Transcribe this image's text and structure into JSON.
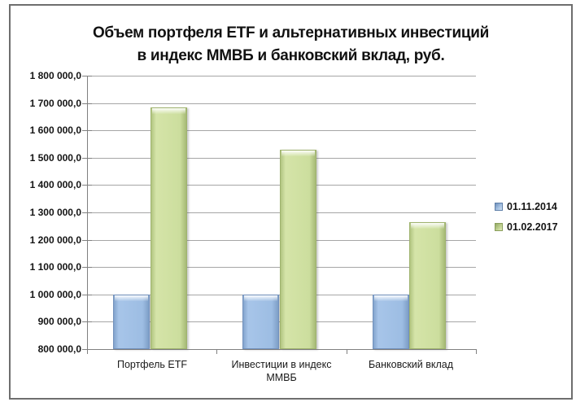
{
  "window": {
    "background": "#ffffff",
    "border_color": "#6e6e6e"
  },
  "chart_data": {
    "type": "bar",
    "title_lines": [
      "Объем портфеля ETF и альтернативных инвестиций",
      "в индекс ММВБ и банковский вклад, руб."
    ],
    "categories": [
      "Портфель ETF",
      "Инвестиции в индекс ММВБ",
      "Банковский вклад"
    ],
    "series": [
      {
        "name": "01.11.2014",
        "color": "#9bbbe0",
        "values": [
          1000000,
          1000000,
          1000000
        ]
      },
      {
        "name": "01.02.2017",
        "color": "#cdde9e",
        "values": [
          1683000,
          1530000,
          1265000
        ]
      }
    ],
    "ylim": [
      800000,
      1800000
    ],
    "ytick_step": 100000,
    "ytick_labels": [
      "1 800 000,0",
      "1 700 000,0",
      "1 600 000,0",
      "1 500 000,0",
      "1 400 000,0",
      "1 300 000,0",
      "1 200 000,0",
      "1 100 000,0",
      "1 000 000,0",
      "900 000,0",
      "800 000,0"
    ],
    "grid": true,
    "legend_position": "right",
    "gridline_color": "#a6a6a6",
    "axis_color": "#808080"
  }
}
